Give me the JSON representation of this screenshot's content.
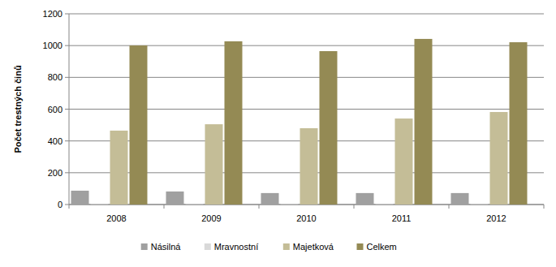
{
  "chart_data": {
    "type": "bar",
    "y_label": "Počet trestných činů",
    "categories": [
      "2008",
      "2009",
      "2010",
      "2011",
      "2012"
    ],
    "series": [
      {
        "name": "Násilná",
        "color": "#a0a0a0",
        "values": [
          87,
          82,
          72,
          72,
          72
        ]
      },
      {
        "name": "Mravnostní",
        "color": "#d9d9d9",
        "values": [
          3,
          3,
          3,
          3,
          3
        ]
      },
      {
        "name": "Majetková",
        "color": "#c4bd97",
        "values": [
          465,
          505,
          480,
          541,
          582
        ]
      },
      {
        "name": "Celkem",
        "color": "#948a54",
        "values": [
          1001,
          1027,
          965,
          1042,
          1021
        ]
      }
    ],
    "ylim": [
      0,
      1200
    ],
    "yticks": [
      0,
      200,
      400,
      600,
      800,
      1000,
      1200
    ],
    "grid": true,
    "legend": "bottom"
  }
}
